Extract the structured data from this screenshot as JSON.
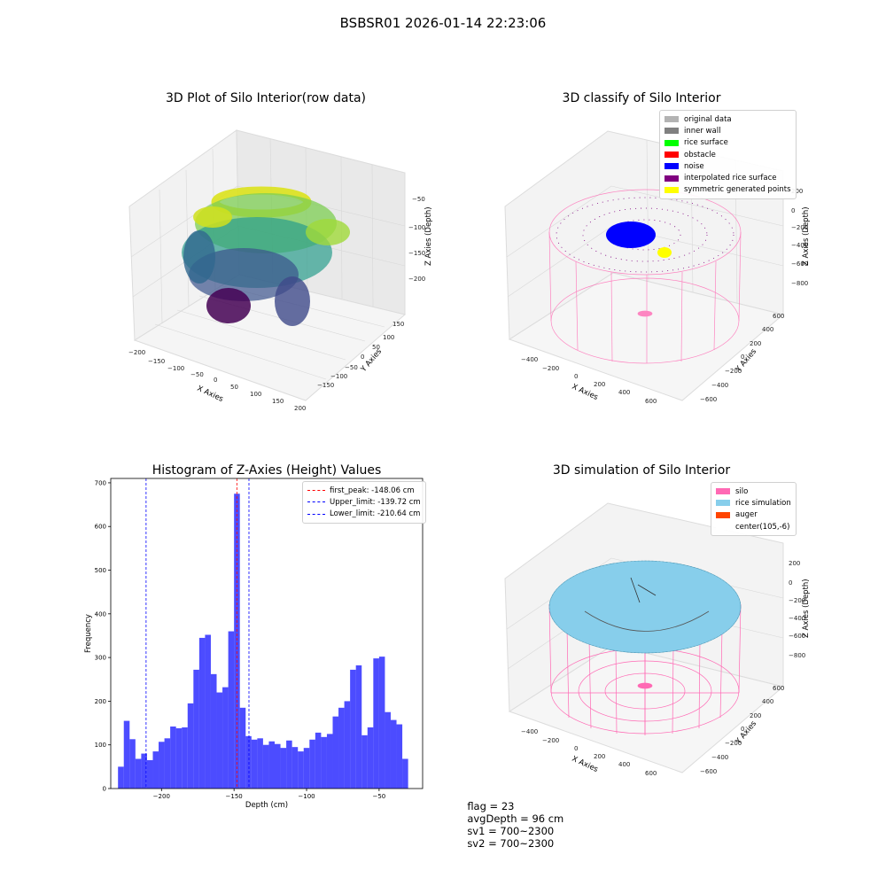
{
  "figure": {
    "suptitle": "BSBSR01 2026-01-14 22:23:06",
    "status": {
      "flag": "flag = 23",
      "avg_depth": "avgDepth = 96 cm",
      "sv1": "sv1 = 700~2300",
      "sv2": "sv2 = 700~2300"
    }
  },
  "panels": {
    "raw": {
      "title": "3D Plot of Silo Interior(row data)",
      "xlabel": "X Axies",
      "ylabel": "Y Axies",
      "zlabel": "Z Axies (Depth)",
      "xticks": [
        "−200",
        "−150",
        "−100",
        "−50",
        "0",
        "50",
        "100",
        "150",
        "200"
      ],
      "yticks": [
        "−150",
        "−100",
        "−50",
        "0",
        "50",
        "100",
        "150"
      ],
      "zticks": [
        "−50",
        "−100",
        "−150",
        "−200"
      ]
    },
    "classify": {
      "title": "3D classify of Silo Interior",
      "xlabel": "X Axies",
      "ylabel": "Y Axies",
      "zlabel": "Z Axies (Depth)",
      "xticks": [
        "−400",
        "−200",
        "0",
        "200",
        "400",
        "600"
      ],
      "yticks": [
        "−600",
        "−400",
        "−200",
        "0",
        "200",
        "400",
        "600"
      ],
      "zticks": [
        "200",
        "0",
        "−200",
        "−400",
        "−600",
        "−800"
      ],
      "legend": [
        {
          "label": "original data",
          "color": "#b3b3b3"
        },
        {
          "label": "inner wall",
          "color": "#808080"
        },
        {
          "label": "rice surface",
          "color": "#00ff00"
        },
        {
          "label": "obstacle",
          "color": "#ff0000"
        },
        {
          "label": "noise",
          "color": "#0000ff"
        },
        {
          "label": "interpolated rice surface",
          "color": "#800080"
        },
        {
          "label": "symmetric generated points",
          "color": "#ffff00"
        }
      ]
    },
    "simulation": {
      "title": "3D simulation of Silo Interior",
      "xlabel": "X Axies",
      "ylabel": "Y Axies",
      "zlabel": "Z Axies (Depth)",
      "xticks": [
        "−400",
        "−200",
        "0",
        "200",
        "400",
        "600"
      ],
      "yticks": [
        "−600",
        "−400",
        "−200",
        "0",
        "200",
        "400",
        "600"
      ],
      "zticks": [
        "200",
        "0",
        "−200",
        "−400",
        "−600",
        "−800"
      ],
      "legend": [
        {
          "label": "silo",
          "color": "#ff69b4"
        },
        {
          "label": "rice simulation",
          "color": "#87ceeb"
        },
        {
          "label": "auger",
          "color": "#ff4500"
        },
        {
          "label": "center(105,-6)",
          "color": "#ffffff"
        }
      ]
    }
  },
  "chart_data": {
    "type": "bar",
    "title": "Histogram of Z-Axies (Height) Values",
    "xlabel": "Depth (cm)",
    "ylabel": "Frequency",
    "xlim": [
      -235,
      -20
    ],
    "ylim": [
      0,
      710
    ],
    "xticks": [
      -200,
      -150,
      -100,
      -50
    ],
    "xtick_labels": [
      "−200",
      "−150",
      "−100",
      "−50"
    ],
    "yticks": [
      0,
      100,
      200,
      300,
      400,
      500,
      600,
      700
    ],
    "bar_color": "#0000ff",
    "bin_start": -230,
    "bin_width": 4,
    "values": [
      50,
      155,
      113,
      68,
      80,
      65,
      85,
      107,
      115,
      142,
      138,
      140,
      195,
      272,
      345,
      352,
      262,
      220,
      232,
      360,
      675,
      185,
      120,
      112,
      115,
      100,
      108,
      102,
      93,
      110,
      95,
      85,
      93,
      112,
      128,
      118,
      125,
      165,
      185,
      200,
      272,
      282,
      122,
      140,
      298,
      302,
      175,
      157,
      147,
      68
    ],
    "vlines": [
      {
        "x": -148.06,
        "color": "#ff0000",
        "label": "first_peak: -148.06 cm"
      },
      {
        "x": -139.72,
        "color": "#0000ff",
        "label": "Upper_limit: -139.72 cm"
      },
      {
        "x": -210.64,
        "color": "#0000ff",
        "label": "Lower_limit: -210.64 cm"
      }
    ],
    "legend_position": "top-right"
  }
}
